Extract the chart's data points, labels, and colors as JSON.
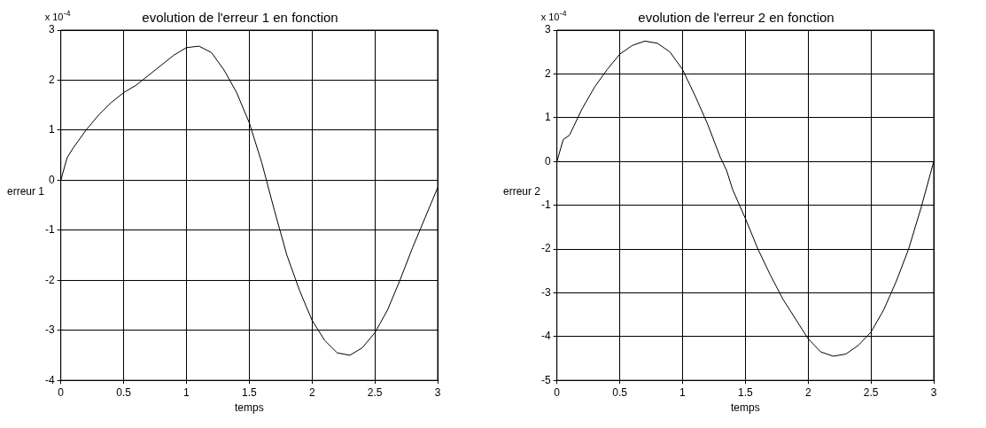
{
  "chart_data": [
    {
      "type": "line",
      "title": "evolution de l'erreur 1 en fonction",
      "xlabel": "temps",
      "ylabel": "erreur 1",
      "annotations": [
        "x 10$^{-4}$"
      ],
      "xlim": [
        0,
        3
      ],
      "ylim": [
        -4,
        3
      ],
      "xticks": [
        0,
        0.5,
        1,
        1.5,
        2,
        2.5,
        3
      ],
      "yticks": [
        -4,
        -3,
        -2,
        -1,
        0,
        1,
        2,
        3
      ],
      "grid": true,
      "legend": false,
      "series": [
        {
          "color": "#000000",
          "x": [
            0,
            0.05,
            0.1,
            0.2,
            0.3,
            0.4,
            0.5,
            0.6,
            0.7,
            0.8,
            0.9,
            1.0,
            1.1,
            1.2,
            1.3,
            1.4,
            1.5,
            1.6,
            1.7,
            1.8,
            1.9,
            2.0,
            2.1,
            2.2,
            2.3,
            2.4,
            2.5,
            2.6,
            2.7,
            2.8,
            2.9,
            3.0
          ],
          "values": [
            0,
            0.45,
            0.65,
            1.0,
            1.3,
            1.55,
            1.75,
            1.9,
            2.1,
            2.3,
            2.5,
            2.65,
            2.68,
            2.55,
            2.2,
            1.75,
            1.15,
            0.35,
            -0.6,
            -1.5,
            -2.2,
            -2.8,
            -3.2,
            -3.45,
            -3.5,
            -3.35,
            -3.05,
            -2.6,
            -2.0,
            -1.35,
            -0.75,
            -0.15
          ]
        }
      ]
    },
    {
      "type": "line",
      "title": "evolution de l'erreur 2 en fonction",
      "xlabel": "temps",
      "ylabel": "erreur 2",
      "annotations": [
        "x 10$^{-4}$"
      ],
      "xlim": [
        0,
        3
      ],
      "ylim": [
        -5,
        3
      ],
      "xticks": [
        0,
        0.5,
        1,
        1.5,
        2,
        2.5,
        3
      ],
      "yticks": [
        -5,
        -4,
        -3,
        -2,
        -1,
        0,
        1,
        2,
        3
      ],
      "grid": true,
      "legend": false,
      "series": [
        {
          "color": "#000000",
          "x": [
            0,
            0.05,
            0.1,
            0.2,
            0.3,
            0.4,
            0.5,
            0.6,
            0.7,
            0.8,
            0.9,
            1.0,
            1.1,
            1.2,
            1.3,
            1.35,
            1.4,
            1.5,
            1.6,
            1.7,
            1.8,
            1.9,
            2.0,
            2.1,
            2.2,
            2.3,
            2.4,
            2.5,
            2.6,
            2.7,
            2.8,
            2.9,
            3.0
          ],
          "values": [
            0,
            0.5,
            0.6,
            1.2,
            1.7,
            2.1,
            2.45,
            2.65,
            2.75,
            2.7,
            2.5,
            2.1,
            1.5,
            0.85,
            0.1,
            -0.2,
            -0.65,
            -1.3,
            -2.0,
            -2.6,
            -3.15,
            -3.6,
            -4.05,
            -4.35,
            -4.45,
            -4.4,
            -4.2,
            -3.9,
            -3.4,
            -2.75,
            -2.0,
            -1.05,
            0
          ]
        }
      ]
    }
  ]
}
